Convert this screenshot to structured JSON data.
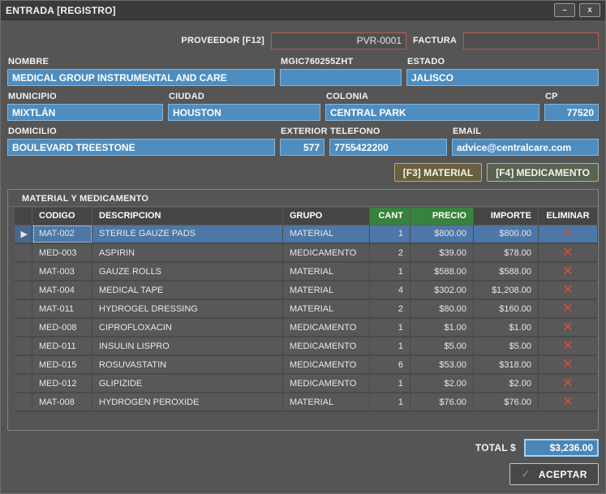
{
  "window": {
    "title": "ENTRADA [REGISTRO]",
    "minimize_glyph": "–",
    "close_glyph": "x"
  },
  "header": {
    "proveedor_label": "PROVEEDOR [F12]",
    "proveedor_value": "PVR-0001",
    "factura_label": "FACTURA",
    "factura_value": ""
  },
  "form": {
    "nombre": {
      "label": "NOMBRE",
      "value": "MEDICAL GROUP INSTRUMENTAL AND CARE"
    },
    "rfc": {
      "label": "MGIC760255ZHT",
      "value": ""
    },
    "estado": {
      "label": "ESTADO",
      "value": "JALISCO"
    },
    "municipio": {
      "label": "MUNICIPIO",
      "value": "MIXTLÁN"
    },
    "ciudad": {
      "label": "CIUDAD",
      "value": "HOUSTON"
    },
    "colonia": {
      "label": "COLONIA",
      "value": "CENTRAL PARK"
    },
    "cp": {
      "label": "CP",
      "value": "77520"
    },
    "domicilio": {
      "label": "DOMICILIO",
      "value": "BOULEVARD TREESTONE"
    },
    "exterior": {
      "label": "EXTERIOR",
      "value": "577"
    },
    "telefono": {
      "label": "TELEFONO",
      "value": "7755422200"
    },
    "email": {
      "label": "EMAIL",
      "value": "advice@centralcare.com"
    }
  },
  "actions": {
    "material_button": "[F3] MATERIAL",
    "medicamento_button": "[F4] MEDICAMENTO",
    "aceptar_button": "ACEPTAR",
    "check_icon": "✓"
  },
  "grid": {
    "title": "MATERIAL Y MEDICAMENTO",
    "columns": [
      "CODIGO",
      "DESCRIPCION",
      "GRUPO",
      "CANT",
      "PRECIO",
      "IMPORTE",
      "ELIMINAR"
    ],
    "delete_icon": "✕",
    "selected_row_marker": "▶",
    "rows": [
      {
        "codigo": "MAT-002",
        "descripcion": "STERILE GAUZE PADS",
        "grupo": "MATERIAL",
        "cant": "1",
        "precio": "$800.00",
        "importe": "$800.00",
        "selected": true
      },
      {
        "codigo": "MED-003",
        "descripcion": "ASPIRIN",
        "grupo": "MEDICAMENTO",
        "cant": "2",
        "precio": "$39.00",
        "importe": "$78.00",
        "selected": false
      },
      {
        "codigo": "MAT-003",
        "descripcion": "GAUZE ROLLS",
        "grupo": "MATERIAL",
        "cant": "1",
        "precio": "$588.00",
        "importe": "$588.00",
        "selected": false
      },
      {
        "codigo": "MAT-004",
        "descripcion": "MEDICAL TAPE",
        "grupo": "MATERIAL",
        "cant": "4",
        "precio": "$302.00",
        "importe": "$1,208.00",
        "selected": false
      },
      {
        "codigo": "MAT-011",
        "descripcion": "HYDROGEL DRESSING",
        "grupo": "MATERIAL",
        "cant": "2",
        "precio": "$80.00",
        "importe": "$160.00",
        "selected": false
      },
      {
        "codigo": "MED-008",
        "descripcion": "CIPROFLOXACIN",
        "grupo": "MEDICAMENTO",
        "cant": "1",
        "precio": "$1.00",
        "importe": "$1.00",
        "selected": false
      },
      {
        "codigo": "MED-011",
        "descripcion": "INSULIN LISPRO",
        "grupo": "MEDICAMENTO",
        "cant": "1",
        "precio": "$5.00",
        "importe": "$5.00",
        "selected": false
      },
      {
        "codigo": "MED-015",
        "descripcion": "ROSUVASTATIN",
        "grupo": "MEDICAMENTO",
        "cant": "6",
        "precio": "$53.00",
        "importe": "$318.00",
        "selected": false
      },
      {
        "codigo": "MED-012",
        "descripcion": "GLIPIZIDE",
        "grupo": "MEDICAMENTO",
        "cant": "1",
        "precio": "$2.00",
        "importe": "$2.00",
        "selected": false
      },
      {
        "codigo": "MAT-008",
        "descripcion": "HYDROGEN PEROXIDE",
        "grupo": "MATERIAL",
        "cant": "1",
        "precio": "$76.00",
        "importe": "$76.00",
        "selected": false
      }
    ]
  },
  "footer": {
    "total_label": "TOTAL $",
    "total_value": "$3,236.00"
  },
  "colors": {
    "accent_blue": "#4e8dc0",
    "selected_row": "#4d77a6",
    "header_green": "#37823d",
    "alert_red_border": "#bc5a52",
    "delete_red": "#d5503b",
    "check_green": "#5da873"
  }
}
